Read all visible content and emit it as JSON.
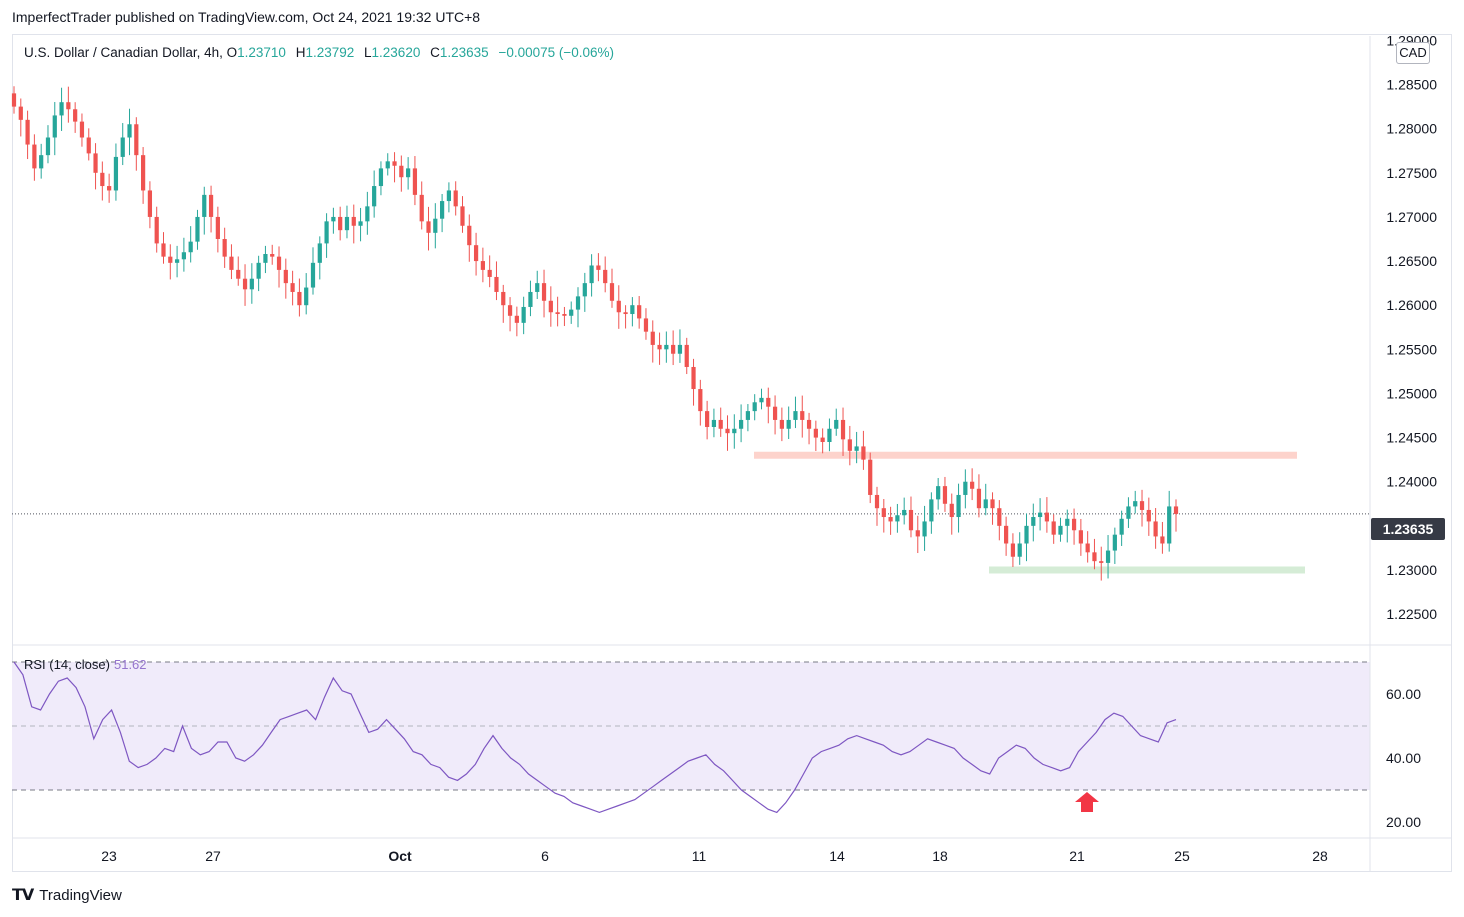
{
  "header": {
    "published_by": "ImperfectTrader published on TradingView.com, Oct 24, 2021 19:32 UTC+8"
  },
  "legend": {
    "symbol": "U.S. Dollar / Canadian Dollar, 4h, O",
    "open": "1.23710",
    "high_label": "H",
    "high": "1.23792",
    "low_label": "L",
    "low": "1.23620",
    "close_label": "C",
    "close": "1.23635",
    "change": "−0.00075 (−0.06%)"
  },
  "currency_badge": "CAD",
  "current_price_label": "1.23635",
  "rsi_legend": {
    "name": "RSI (14, close)",
    "value": "51.62"
  },
  "footer": {
    "brand": "TradingView"
  },
  "colors": {
    "up": "#26a69a",
    "down": "#ef5350",
    "rsi_line": "#7e57c2",
    "rsi_band": "#f0ebfa",
    "resistance_zone": "#fdd3cc",
    "support_zone": "#d5ecd6",
    "arrow": "#f23645"
  },
  "chart_data": [
    {
      "type": "candlestick",
      "title": "U.S. Dollar / Canadian Dollar, 4h",
      "y_axis_ticks": [
        "1.28500",
        "1.28000",
        "1.27500",
        "1.27000",
        "1.26500",
        "1.26000",
        "1.25500",
        "1.25000",
        "1.24500",
        "1.24000",
        "1.23500",
        "1.23000",
        "1.22500"
      ],
      "y_axis_partial_top": "1.29000",
      "x_axis_ticks": [
        "23",
        "27",
        "Oct",
        "6",
        "11",
        "14",
        "18",
        "21",
        "25",
        "28"
      ],
      "ylim": [
        1.2215,
        1.2905
      ],
      "current_price": 1.23635,
      "zones": [
        {
          "name": "resistance",
          "value": 1.243,
          "from": "Oct 12",
          "to": "Oct 27"
        },
        {
          "name": "support",
          "value": 1.23,
          "from": "Oct 19",
          "to": "Oct 27"
        }
      ],
      "path_open": 1.284,
      "path_closes": [
        1.2825,
        1.281,
        1.2782,
        1.2755,
        1.277,
        1.279,
        1.2815,
        1.283,
        1.2822,
        1.2808,
        1.279,
        1.2772,
        1.275,
        1.2735,
        1.273,
        1.2768,
        1.279,
        1.2805,
        1.277,
        1.273,
        1.27,
        1.267,
        1.2655,
        1.2648,
        1.2652,
        1.266,
        1.2672,
        1.27,
        1.2725,
        1.27,
        1.2675,
        1.2655,
        1.264,
        1.263,
        1.2618,
        1.263,
        1.2648,
        1.2658,
        1.2655,
        1.264,
        1.2625,
        1.2615,
        1.26,
        1.262,
        1.2648,
        1.267,
        1.2695,
        1.27,
        1.2685,
        1.27,
        1.269,
        1.2695,
        1.2712,
        1.2735,
        1.2755,
        1.2763,
        1.2758,
        1.2745,
        1.2755,
        1.2725,
        1.2695,
        1.2682,
        1.2698,
        1.2718,
        1.273,
        1.2712,
        1.269,
        1.2668,
        1.265,
        1.264,
        1.2632,
        1.2615,
        1.26,
        1.2588,
        1.258,
        1.2598,
        1.2615,
        1.2625,
        1.2605,
        1.2592,
        1.259,
        1.2588,
        1.2595,
        1.261,
        1.2625,
        1.2645,
        1.264,
        1.2625,
        1.2605,
        1.2592,
        1.259,
        1.26,
        1.2585,
        1.257,
        1.2555,
        1.255,
        1.2555,
        1.2545,
        1.2555,
        1.253,
        1.2505,
        1.248,
        1.2462,
        1.247,
        1.246,
        1.2455,
        1.246,
        1.247,
        1.248,
        1.249,
        1.2495,
        1.2485,
        1.247,
        1.246,
        1.247,
        1.248,
        1.247,
        1.246,
        1.245,
        1.2445,
        1.246,
        1.247,
        1.2448,
        1.2435,
        1.244,
        1.2425,
        1.2385,
        1.237,
        1.236,
        1.2355,
        1.2362,
        1.2368,
        1.2345,
        1.2338,
        1.2355,
        1.238,
        1.2395,
        1.2375,
        1.236,
        1.2385,
        1.24,
        1.2392,
        1.237,
        1.238,
        1.237,
        1.235,
        1.233,
        1.2315,
        1.233,
        1.235,
        1.236,
        1.2365,
        1.2355,
        1.234,
        1.235,
        1.2358,
        1.2345,
        1.233,
        1.232,
        1.231,
        1.2308,
        1.2322,
        1.234,
        1.2358,
        1.2372,
        1.2378,
        1.2368,
        1.2355,
        1.2338,
        1.233,
        1.2372,
        1.23635
      ],
      "rsi": {
        "name": "RSI (14, close)",
        "last": 51.62,
        "levels": [
          70,
          50,
          30
        ],
        "y_ticks": [
          "60.00",
          "40.00",
          "20.00"
        ],
        "ylim": [
          15,
          75
        ],
        "values": [
          70,
          66,
          56,
          55,
          60,
          64,
          65,
          62,
          56,
          46,
          52,
          55,
          48,
          39,
          37,
          38,
          40,
          43,
          42,
          50,
          43,
          41,
          42,
          45,
          45,
          40,
          39,
          41,
          44,
          48,
          52,
          53,
          54,
          55,
          52,
          59,
          65,
          61,
          60,
          54,
          48,
          49,
          52,
          49,
          46,
          42,
          41,
          38,
          37,
          34,
          33,
          35,
          38,
          43,
          47,
          43,
          40,
          38,
          35,
          33,
          31,
          29,
          28,
          26,
          25,
          24,
          23,
          24,
          25,
          26,
          27,
          29,
          31,
          33,
          35,
          37,
          39,
          40,
          41,
          38,
          36,
          33,
          30,
          28,
          26,
          24,
          23,
          26,
          30,
          35,
          40,
          42,
          43,
          44,
          46,
          47,
          46,
          45,
          44,
          42,
          41,
          42,
          44,
          46,
          45,
          44,
          43,
          40,
          38,
          36,
          35,
          40,
          42,
          44,
          43,
          40,
          38,
          37,
          36,
          37,
          42,
          45,
          48,
          52,
          54,
          53,
          50,
          47,
          46,
          45,
          51,
          52
        ]
      }
    }
  ]
}
